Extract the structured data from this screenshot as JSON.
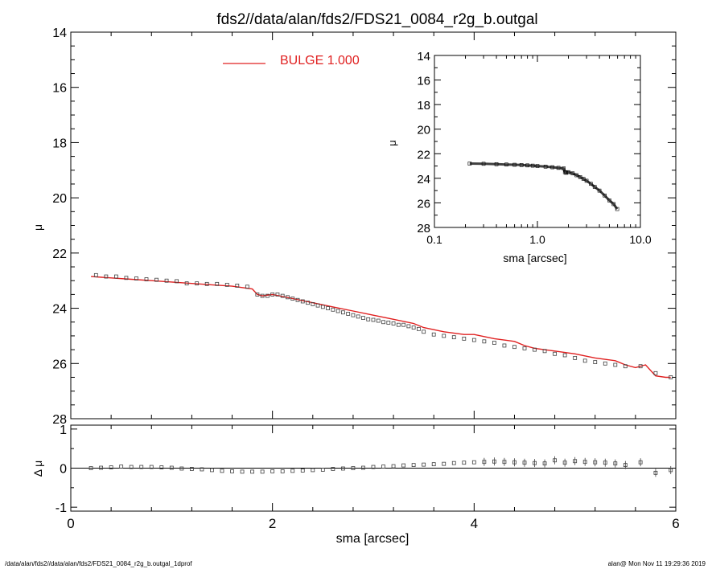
{
  "title": "fds2//data/alan/fds2/FDS21_0084_r2g_b.outgal",
  "footer_left": "/data/alan/fds2//data/alan/fds2/FDS21_0084_r2g_b.outgal_1dprof",
  "footer_right": "alan@  Mon Nov 11 19:29:36 2019",
  "colors": {
    "model": "#e02020",
    "data": "#404040",
    "axes": "#000000"
  },
  "chart_data": [
    {
      "id": "main",
      "type": "line",
      "title": "fds2//data/alan/fds2/FDS21_0084_r2g_b.outgal",
      "xlabel": "",
      "ylabel": "μ",
      "xlim": [
        0,
        6
      ],
      "ylim": [
        28,
        14
      ],
      "yticks": [
        "14",
        "16",
        "18",
        "20",
        "22",
        "24",
        "26",
        "28"
      ],
      "legend": {
        "label": "BULGE  1.000",
        "placement": "top-center"
      },
      "series": [
        {
          "name": "BULGE  1.000",
          "kind": "line",
          "x": [
            0.2,
            0.4,
            0.6,
            0.8,
            1.0,
            1.2,
            1.4,
            1.6,
            1.8,
            1.85,
            1.9,
            2.0,
            2.2,
            2.4,
            2.6,
            2.8,
            3.0,
            3.2,
            3.4,
            3.5,
            3.7,
            3.9,
            4.0,
            4.2,
            4.4,
            4.5,
            4.6,
            4.8,
            5.0,
            5.2,
            5.4,
            5.5,
            5.6,
            5.7,
            5.8,
            5.9,
            5.95
          ],
          "y": [
            22.85,
            22.9,
            22.95,
            23.0,
            23.05,
            23.1,
            23.15,
            23.2,
            23.3,
            23.5,
            23.55,
            23.5,
            23.65,
            23.8,
            23.95,
            24.1,
            24.25,
            24.4,
            24.55,
            24.7,
            24.85,
            24.95,
            24.95,
            25.1,
            25.2,
            25.35,
            25.45,
            25.55,
            25.65,
            25.8,
            25.9,
            26.05,
            26.15,
            26.05,
            26.45,
            26.5,
            26.5
          ]
        },
        {
          "name": "",
          "kind": "markers",
          "x": [
            0.25,
            0.35,
            0.45,
            0.55,
            0.65,
            0.75,
            0.85,
            0.95,
            1.05,
            1.15,
            1.25,
            1.35,
            1.45,
            1.55,
            1.65,
            1.75,
            1.85,
            1.9,
            1.95,
            2.0,
            2.05,
            2.1,
            2.15,
            2.2,
            2.25,
            2.3,
            2.35,
            2.4,
            2.45,
            2.5,
            2.55,
            2.6,
            2.65,
            2.7,
            2.75,
            2.8,
            2.85,
            2.9,
            2.95,
            3.0,
            3.05,
            3.1,
            3.15,
            3.2,
            3.25,
            3.3,
            3.35,
            3.4,
            3.45,
            3.5,
            3.6,
            3.7,
            3.8,
            3.9,
            4.0,
            4.1,
            4.2,
            4.3,
            4.4,
            4.5,
            4.6,
            4.7,
            4.8,
            4.9,
            5.0,
            5.1,
            5.2,
            5.3,
            5.4,
            5.5,
            5.65,
            5.8,
            5.95
          ],
          "y": [
            22.8,
            22.85,
            22.85,
            22.9,
            22.92,
            22.95,
            22.97,
            23.0,
            23.02,
            23.1,
            23.1,
            23.12,
            23.12,
            23.15,
            23.18,
            23.22,
            23.5,
            23.55,
            23.55,
            23.5,
            23.5,
            23.55,
            23.6,
            23.65,
            23.7,
            23.75,
            23.8,
            23.85,
            23.9,
            23.95,
            24.0,
            24.05,
            24.1,
            24.15,
            24.2,
            24.25,
            24.3,
            24.35,
            24.4,
            24.42,
            24.45,
            24.5,
            24.52,
            24.55,
            24.6,
            24.6,
            24.65,
            24.7,
            24.75,
            24.85,
            24.95,
            25.0,
            25.05,
            25.1,
            25.15,
            25.2,
            25.25,
            25.35,
            25.4,
            25.45,
            25.5,
            25.55,
            25.65,
            25.7,
            25.8,
            25.9,
            25.95,
            26.0,
            26.05,
            26.1,
            26.1,
            26.35,
            26.5
          ]
        }
      ]
    },
    {
      "id": "inset",
      "type": "line",
      "xlabel": "sma [arcsec]",
      "ylabel": "μ",
      "xscale": "log",
      "xlim": [
        0.1,
        10.0
      ],
      "xticks": [
        "0.1",
        "1.0",
        "10.0"
      ],
      "ylim": [
        28,
        14
      ],
      "yticks": [
        "14",
        "16",
        "18",
        "20",
        "22",
        "24",
        "26",
        "28"
      ],
      "series": [
        {
          "name": "",
          "kind": "markers",
          "x": [
            0.22,
            0.3,
            0.4,
            0.5,
            0.6,
            0.7,
            0.8,
            0.9,
            1.0,
            1.2,
            1.4,
            1.6,
            1.8,
            1.85,
            1.9,
            2.0,
            2.2,
            2.4,
            2.6,
            2.8,
            3.0,
            3.3,
            3.6,
            4.0,
            4.5,
            5.0,
            5.5,
            5.95
          ],
          "y": [
            22.8,
            22.82,
            22.85,
            22.88,
            22.9,
            22.92,
            22.95,
            22.97,
            23.0,
            23.05,
            23.1,
            23.15,
            23.2,
            23.5,
            23.55,
            23.5,
            23.6,
            23.75,
            23.9,
            24.05,
            24.2,
            24.45,
            24.7,
            25.0,
            25.4,
            25.8,
            26.1,
            26.5
          ]
        }
      ]
    },
    {
      "id": "residual",
      "type": "scatter",
      "xlabel": "sma [arcsec]",
      "ylabel": "Δ μ",
      "xlim": [
        0,
        6
      ],
      "xticks": [
        "0",
        "2",
        "4",
        "6"
      ],
      "ylim": [
        -1.1,
        1.1
      ],
      "yticks": [
        "1",
        "0",
        "-1"
      ],
      "series": [
        {
          "name": "",
          "kind": "markers",
          "x": [
            0.2,
            0.3,
            0.4,
            0.5,
            0.6,
            0.7,
            0.8,
            0.9,
            1.0,
            1.1,
            1.2,
            1.3,
            1.4,
            1.5,
            1.6,
            1.7,
            1.8,
            1.9,
            2.0,
            2.1,
            2.2,
            2.3,
            2.4,
            2.5,
            2.6,
            2.7,
            2.8,
            2.9,
            3.0,
            3.1,
            3.2,
            3.3,
            3.4,
            3.5,
            3.6,
            3.7,
            3.8,
            3.9,
            4.0,
            4.1,
            4.2,
            4.3,
            4.4,
            4.5,
            4.6,
            4.7,
            4.8,
            4.9,
            5.0,
            5.1,
            5.2,
            5.3,
            5.4,
            5.5,
            5.65,
            5.8,
            5.95
          ],
          "y": [
            0.0,
            0.01,
            0.02,
            0.04,
            0.03,
            0.03,
            0.03,
            0.02,
            0.01,
            -0.01,
            -0.02,
            -0.03,
            -0.05,
            -0.07,
            -0.08,
            -0.09,
            -0.09,
            -0.09,
            -0.08,
            -0.08,
            -0.07,
            -0.06,
            -0.05,
            -0.04,
            -0.02,
            -0.01,
            0.0,
            0.01,
            0.03,
            0.04,
            0.05,
            0.07,
            0.08,
            0.09,
            0.1,
            0.11,
            0.13,
            0.14,
            0.15,
            0.16,
            0.17,
            0.16,
            0.15,
            0.14,
            0.13,
            0.12,
            0.2,
            0.14,
            0.18,
            0.16,
            0.15,
            0.14,
            0.12,
            0.08,
            0.15,
            -0.12,
            -0.05
          ]
        }
      ]
    }
  ]
}
